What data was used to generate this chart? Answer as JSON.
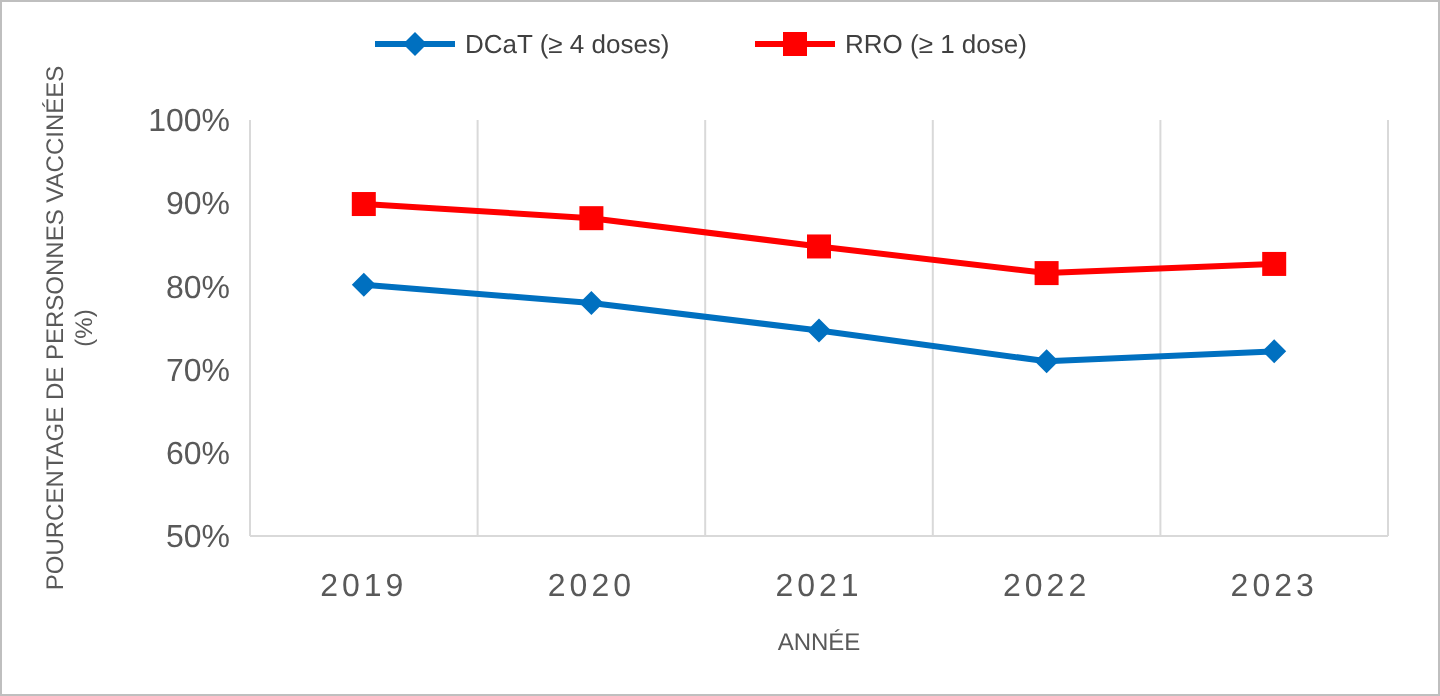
{
  "chart_data": {
    "type": "line",
    "xlabel": "ANNÉE",
    "ylabel": "POURCENTAGE DE PERSONNES VACCINÉES (%)",
    "categories": [
      "2019",
      "2020",
      "2021",
      "2022",
      "2023"
    ],
    "series": [
      {
        "name": "DCaT (≥ 4 doses)",
        "color": "#0070c0",
        "marker": "diamond",
        "values": [
          80.2,
          78.0,
          74.7,
          71.0,
          72.2
        ]
      },
      {
        "name": "RRO (≥ 1 dose)",
        "color": "#ff0000",
        "marker": "square",
        "values": [
          89.9,
          88.2,
          84.8,
          81.6,
          82.7
        ]
      }
    ],
    "ylim": [
      50,
      100
    ],
    "yticks": [
      {
        "value": 50,
        "label": "50%"
      },
      {
        "value": 60,
        "label": "60%"
      },
      {
        "value": 70,
        "label": "70%"
      },
      {
        "value": 80,
        "label": "80%"
      },
      {
        "value": 90,
        "label": "90%"
      },
      {
        "value": 100,
        "label": "100%"
      }
    ],
    "grid": "x",
    "legend": "top"
  }
}
